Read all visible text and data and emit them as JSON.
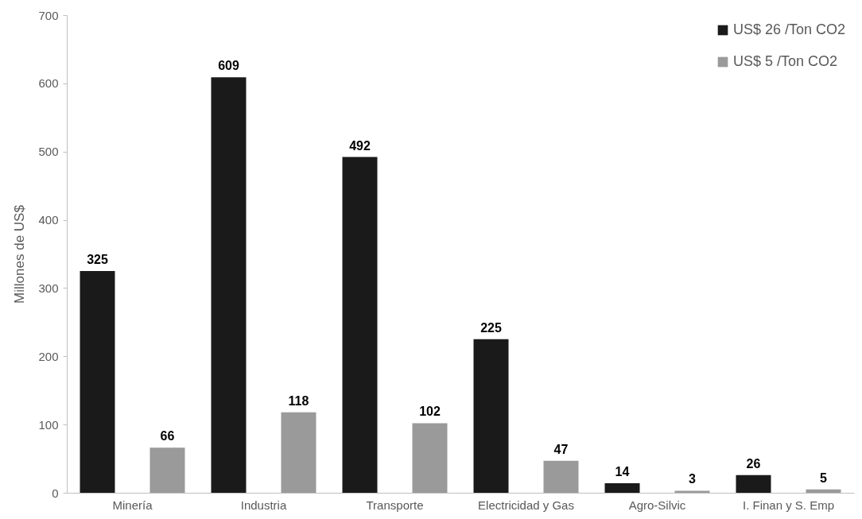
{
  "chart_data": {
    "type": "bar",
    "ylabel": "Millones de US$",
    "categories": [
      "Minería",
      "Industria",
      "Transporte",
      "Electricidad y Gas",
      "Agro-Silvic",
      "I. Finan y S. Emp"
    ],
    "series": [
      {
        "name": "US$ 26 /Ton CO2",
        "color": "#1a1a1a",
        "values": [
          325,
          609,
          492,
          225,
          14,
          26
        ]
      },
      {
        "name": "US$ 5 /Ton CO2",
        "color": "#9a9a9a",
        "values": [
          66,
          118,
          102,
          47,
          3,
          5
        ]
      }
    ],
    "ylim": [
      0,
      700
    ],
    "yticks": [
      0,
      100,
      200,
      300,
      400,
      500,
      600,
      700
    ],
    "grid": false,
    "legend": "top right",
    "data_labels": true
  }
}
